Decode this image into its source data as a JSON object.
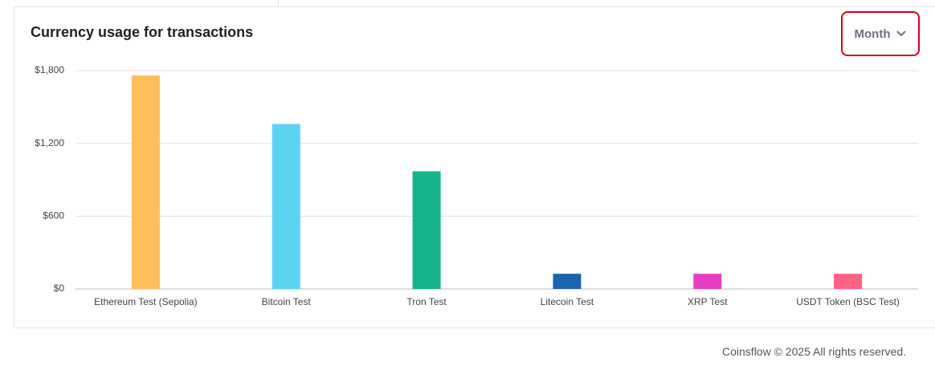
{
  "chart_data": {
    "type": "bar",
    "title": "Currency usage for transactions",
    "categories": [
      "Ethereum Test (Sepolia)",
      "Bitcoin Test",
      "Tron Test",
      "Litecoin Test",
      "XRP Test",
      "USDT Token (BSC Test)"
    ],
    "values": [
      1760,
      1360,
      970,
      125,
      125,
      125
    ],
    "colors": [
      "#ffc05c",
      "#5bd5ef",
      "#17b38a",
      "#1866b0",
      "#e53dc8",
      "#ff6384"
    ],
    "ylim": [
      0,
      1800
    ],
    "yticks": [
      {
        "value": 0,
        "label": "$0"
      },
      {
        "value": 600,
        "label": "$600"
      },
      {
        "value": 1200,
        "label": "$1,200"
      },
      {
        "value": 1800,
        "label": "$1,800"
      }
    ],
    "grid": true
  },
  "period_selector": "Month",
  "footer": "Coinsflow © 2025 All rights reserved."
}
